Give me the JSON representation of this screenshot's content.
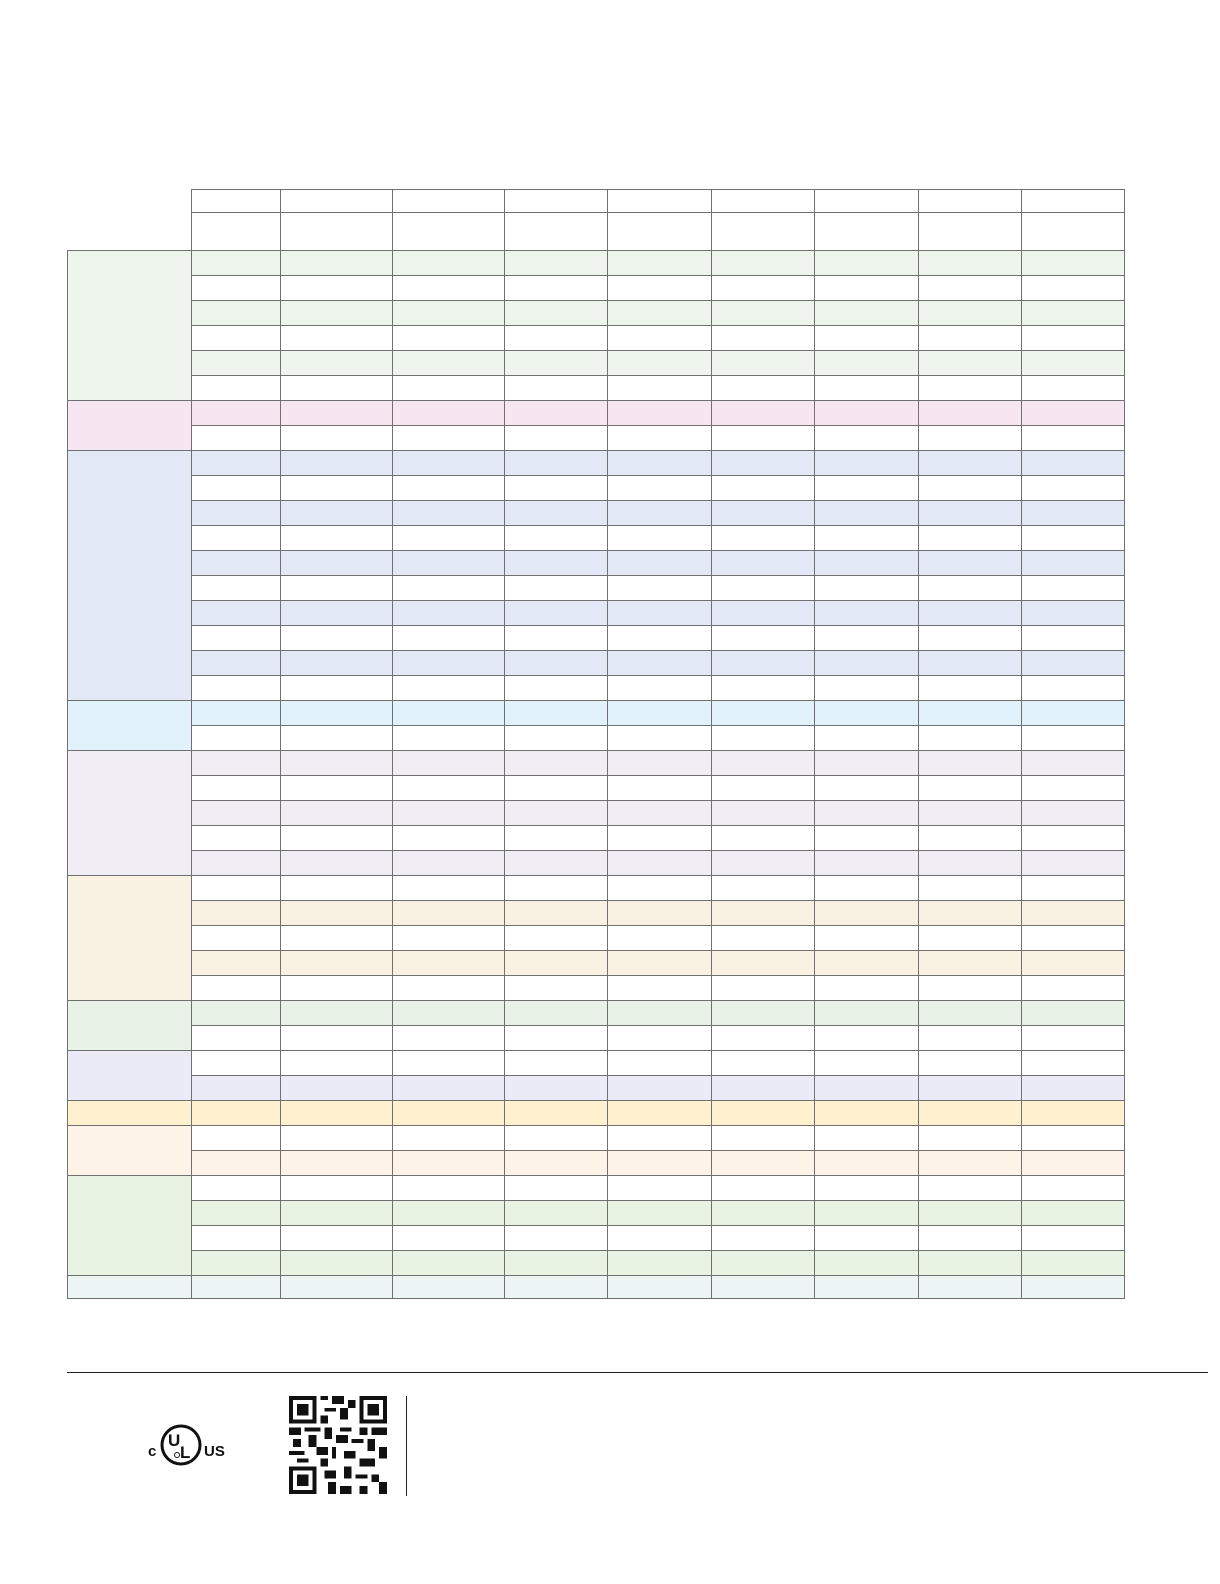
{
  "table": {
    "columns": 10,
    "header_rows": 2,
    "border_color": "#707070",
    "groups": [
      {
        "rows": 6,
        "color": "#eef5ec",
        "first_tinted": true
      },
      {
        "rows": 2,
        "color": "#f5e6f1",
        "first_tinted": true
      },
      {
        "rows": 10,
        "color": "#e2e8f5",
        "first_tinted": true
      },
      {
        "rows": 2,
        "color": "#e1f2fb",
        "first_tinted": true
      },
      {
        "rows": 5,
        "color": "#f0edf5",
        "first_tinted": true
      },
      {
        "rows": 5,
        "color": "#f9f1e1",
        "first_tinted": false
      },
      {
        "rows": 2,
        "color": "#e9f2e7",
        "first_tinted": true
      },
      {
        "rows": 2,
        "color": "#ebebf8",
        "first_tinted": false
      },
      {
        "rows": 1,
        "color": "#fff0cf",
        "first_tinted": true
      },
      {
        "rows": 2,
        "color": "#fef3e7",
        "first_tinted": false
      },
      {
        "rows": 4,
        "color": "#e8f3e4",
        "first_tinted": false
      },
      {
        "rows": 1,
        "color": "#ecf5f4",
        "first_tinted": true
      }
    ]
  },
  "footer": {
    "certification_logo": "c UL US",
    "qr_icon": "qr-code-icon"
  }
}
